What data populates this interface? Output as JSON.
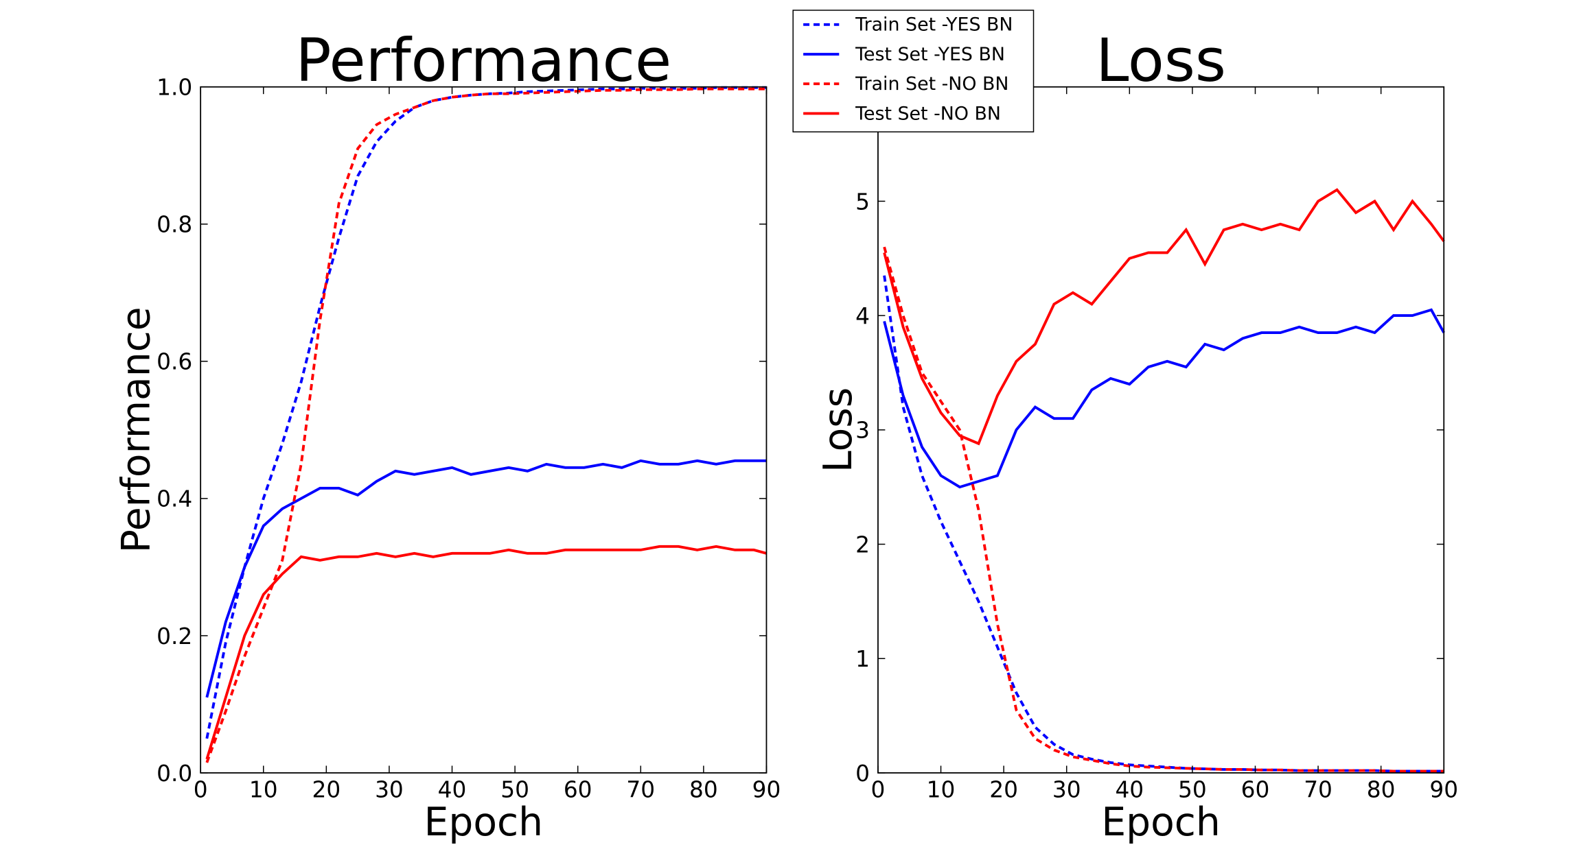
{
  "chart_data": [
    {
      "type": "line",
      "title": "Performance",
      "x_label": "Epoch",
      "y_label": "Performance",
      "x": [
        1,
        4,
        7,
        10,
        13,
        16,
        19,
        22,
        25,
        28,
        31,
        34,
        37,
        40,
        43,
        46,
        49,
        52,
        55,
        58,
        61,
        64,
        67,
        70,
        73,
        76,
        79,
        82,
        85,
        88,
        90
      ],
      "xlim": [
        0,
        90
      ],
      "xticks": [
        0,
        10,
        20,
        30,
        40,
        50,
        60,
        70,
        80,
        90
      ],
      "ylim": [
        0,
        1
      ],
      "yticks": [
        {
          "value": 0,
          "label": "0.0"
        },
        0.2,
        0.4,
        0.6,
        0.8,
        {
          "value": 1,
          "label": "1.0"
        }
      ],
      "series": [
        {
          "name": "Train Set -YES BN",
          "color": "#0000ff",
          "linestyle": "dashed",
          "values": [
            0.05,
            0.19,
            0.3,
            0.4,
            0.48,
            0.57,
            0.68,
            0.78,
            0.87,
            0.92,
            0.95,
            0.97,
            0.98,
            0.985,
            0.988,
            0.99,
            0.991,
            0.993,
            0.994,
            0.995,
            0.996,
            0.997,
            0.997,
            0.998,
            0.998,
            0.998,
            0.998,
            0.999,
            0.999,
            0.999,
            0.999
          ]
        },
        {
          "name": "Test Set -YES BN",
          "color": "#0000ff",
          "linestyle": "solid",
          "values": [
            0.11,
            0.22,
            0.3,
            0.36,
            0.385,
            0.4,
            0.415,
            0.415,
            0.405,
            0.425,
            0.44,
            0.435,
            0.44,
            0.445,
            0.435,
            0.44,
            0.445,
            0.44,
            0.45,
            0.445,
            0.445,
            0.45,
            0.445,
            0.455,
            0.45,
            0.45,
            0.455,
            0.45,
            0.455,
            0.455,
            0.455
          ]
        },
        {
          "name": "Train Set -NO BN",
          "color": "#ff0000",
          "linestyle": "dashed",
          "values": [
            0.015,
            0.09,
            0.17,
            0.24,
            0.31,
            0.45,
            0.66,
            0.83,
            0.91,
            0.945,
            0.96,
            0.97,
            0.98,
            0.985,
            0.988,
            0.99,
            0.99,
            0.991,
            0.992,
            0.993,
            0.994,
            0.995,
            0.995,
            0.996,
            0.996,
            0.996,
            0.997,
            0.997,
            0.997,
            0.997,
            0.997
          ]
        },
        {
          "name": "Test Set -NO BN",
          "color": "#ff0000",
          "linestyle": "solid",
          "values": [
            0.02,
            0.11,
            0.2,
            0.26,
            0.29,
            0.315,
            0.31,
            0.315,
            0.315,
            0.32,
            0.315,
            0.32,
            0.315,
            0.32,
            0.32,
            0.32,
            0.325,
            0.32,
            0.32,
            0.325,
            0.325,
            0.325,
            0.325,
            0.325,
            0.33,
            0.33,
            0.325,
            0.33,
            0.325,
            0.325,
            0.32
          ]
        }
      ]
    },
    {
      "type": "line",
      "title": "Loss",
      "x_label": "Epoch",
      "y_label": "Loss",
      "x": [
        1,
        4,
        7,
        10,
        13,
        16,
        19,
        22,
        25,
        28,
        31,
        34,
        37,
        40,
        43,
        46,
        49,
        52,
        55,
        58,
        61,
        64,
        67,
        70,
        73,
        76,
        79,
        82,
        85,
        88,
        90
      ],
      "xlim": [
        0,
        90
      ],
      "xticks": [
        0,
        10,
        20,
        30,
        40,
        50,
        60,
        70,
        80,
        90
      ],
      "ylim": [
        0,
        6
      ],
      "yticks": [
        0,
        1,
        2,
        3,
        4,
        5
      ],
      "series": [
        {
          "color": "#0000ff",
          "linestyle": "dashed",
          "values": [
            4.35,
            3.2,
            2.6,
            2.2,
            1.85,
            1.5,
            1.1,
            0.7,
            0.4,
            0.25,
            0.16,
            0.12,
            0.09,
            0.07,
            0.06,
            0.05,
            0.04,
            0.035,
            0.03,
            0.03,
            0.025,
            0.025,
            0.02,
            0.02,
            0.02,
            0.02,
            0.02,
            0.015,
            0.015,
            0.015,
            0.015
          ]
        },
        {
          "color": "#0000ff",
          "linestyle": "solid",
          "values": [
            3.95,
            3.3,
            2.85,
            2.6,
            2.5,
            2.55,
            2.6,
            3.0,
            3.2,
            3.1,
            3.1,
            3.35,
            3.45,
            3.4,
            3.55,
            3.6,
            3.55,
            3.75,
            3.7,
            3.8,
            3.85,
            3.85,
            3.9,
            3.85,
            3.85,
            3.9,
            3.85,
            4.0,
            4.0,
            4.05,
            3.85
          ]
        },
        {
          "color": "#ff0000",
          "linestyle": "dashed",
          "values": [
            4.6,
            4.0,
            3.5,
            3.25,
            3.0,
            2.3,
            1.3,
            0.55,
            0.3,
            0.2,
            0.14,
            0.11,
            0.08,
            0.06,
            0.05,
            0.045,
            0.04,
            0.035,
            0.03,
            0.03,
            0.025,
            0.025,
            0.02,
            0.02,
            0.02,
            0.02,
            0.02,
            0.015,
            0.015,
            0.015,
            0.015
          ]
        },
        {
          "color": "#ff0000",
          "linestyle": "solid",
          "values": [
            4.55,
            3.9,
            3.45,
            3.15,
            2.95,
            2.88,
            3.3,
            3.6,
            3.75,
            4.1,
            4.2,
            4.1,
            4.3,
            4.5,
            4.55,
            4.55,
            4.75,
            4.45,
            4.75,
            4.8,
            4.75,
            4.8,
            4.75,
            5.0,
            5.1,
            4.9,
            5.0,
            4.75,
            5.0,
            4.8,
            4.65
          ]
        }
      ]
    }
  ]
}
